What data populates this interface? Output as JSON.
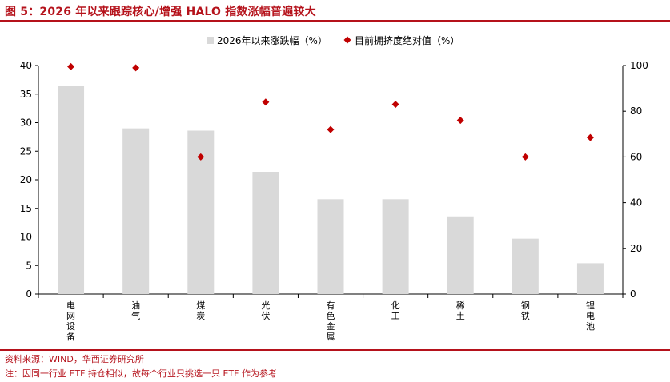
{
  "header": {
    "title": "图 5：2026 年以来跟踪核心/增强 HALO 指数涨幅普遍较大"
  },
  "footer": {
    "source": "资料来源：WIND，华西证券研究所",
    "note": "注：因同一行业 ETF 持仓相似，故每个行业只挑选一只 ETF 作为参考"
  },
  "chart_data": {
    "type": "bar",
    "categories": [
      "电网设备",
      "油气",
      "煤炭",
      "光伏",
      "有色金属",
      "化工",
      "稀土",
      "钢铁",
      "锂电池"
    ],
    "series": [
      {
        "name": "2026年以来涨跌幅（%）",
        "type": "bar",
        "axis": "left",
        "values": [
          36.5,
          29.0,
          28.6,
          21.4,
          16.6,
          16.6,
          13.6,
          9.7,
          5.4
        ]
      },
      {
        "name": "目前拥挤度绝对值（%）",
        "type": "scatter",
        "axis": "right",
        "values": [
          99.5,
          99.0,
          60.0,
          84.0,
          72.0,
          83.0,
          76.0,
          60.0,
          68.5
        ]
      }
    ],
    "ylim_left": [
      0,
      40
    ],
    "ylim_right": [
      0,
      100
    ],
    "yticks_left": [
      0,
      5,
      10,
      15,
      20,
      25,
      30,
      35,
      40
    ],
    "yticks_right": [
      0,
      20,
      40,
      60,
      80,
      100
    ],
    "legend_position": "top",
    "colors": {
      "bar": "#d9d9d9",
      "marker": "#c00000",
      "axis": "#000000"
    }
  }
}
